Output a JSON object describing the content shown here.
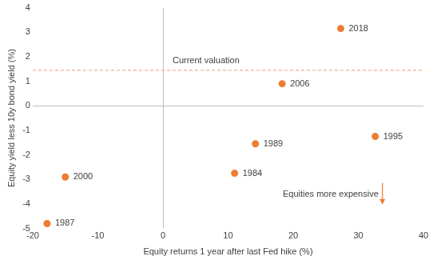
{
  "chart_data": {
    "type": "scatter",
    "x_label": "Equity returns 1 year after last Fed hike (%)",
    "y_label": "Equity yield less 10y bond yield (%)",
    "x": [
      27.3,
      18.3,
      14.2,
      32.6,
      11,
      -15,
      -17.8
    ],
    "values": [
      3.15,
      0.9,
      -1.55,
      -1.25,
      -2.75,
      -2.9,
      -4.8
    ],
    "point_labels": [
      "2018",
      "2006",
      "1989",
      "1995",
      "1984",
      "2000",
      "1987"
    ],
    "color": "#ed7d31",
    "marker": "circle",
    "reference_line": {
      "label": "Current valuation",
      "value": 1.45,
      "color": "#f4b183",
      "line_style": "dashed"
    },
    "annotation": {
      "text": "Equities more expensive",
      "color": "#ed7d31"
    },
    "xlim": [
      -20,
      40
    ],
    "xticks": [
      -20,
      -10,
      0,
      10,
      20,
      30,
      40
    ],
    "ylim": [
      -5,
      4
    ],
    "yticks": [
      -5,
      -4,
      -3,
      -2,
      -1,
      0,
      1,
      2,
      3,
      4
    ],
    "grid": false
  }
}
